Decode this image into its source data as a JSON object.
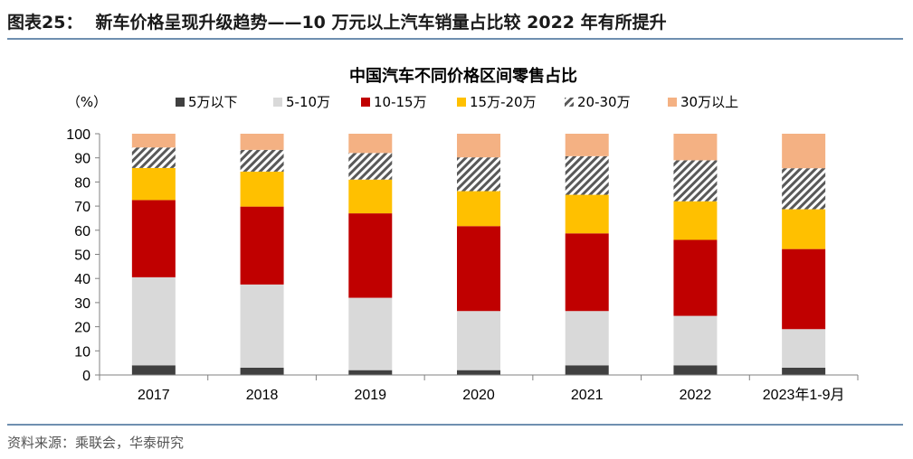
{
  "figure": {
    "label": "图表25：",
    "title": "新车价格呈现升级趋势——10 万元以上汽车销量占比较 2022 年有所提升",
    "source": "资料来源：乘联会，华泰研究"
  },
  "chart_data": {
    "type": "bar",
    "stacked": true,
    "title": "中国汽车不同价格区间零售占比",
    "ylabel": "（%）",
    "xlabel": "",
    "ylim": [
      0,
      100
    ],
    "yticks": [
      0,
      10,
      20,
      30,
      40,
      50,
      60,
      70,
      80,
      90,
      100
    ],
    "categories": [
      "2017",
      "2018",
      "2019",
      "2020",
      "2021",
      "2022",
      "2023年1-9月"
    ],
    "series": [
      {
        "name": "5万以下",
        "color": "#404040",
        "pattern": false,
        "values": [
          4,
          3,
          2,
          2,
          4,
          4,
          3
        ]
      },
      {
        "name": "5-10万",
        "color": "#d9d9d9",
        "pattern": false,
        "values": [
          36.5,
          34.5,
          30,
          24.5,
          22.5,
          20.5,
          16
        ]
      },
      {
        "name": "10-15万",
        "color": "#c00000",
        "pattern": false,
        "values": [
          32,
          32.3,
          35,
          35.2,
          32.2,
          31.5,
          33.2
        ]
      },
      {
        "name": "15万-20万",
        "color": "#ffc000",
        "pattern": false,
        "values": [
          13.3,
          14.5,
          14,
          14.5,
          16,
          16,
          16.5
        ]
      },
      {
        "name": "20-30万",
        "color": "#595959",
        "pattern": true,
        "values": [
          8.5,
          9,
          11,
          14,
          16,
          17,
          17
        ]
      },
      {
        "name": "30万以上",
        "color": "#f4b183",
        "pattern": false,
        "values": [
          5.7,
          6.7,
          8,
          9.8,
          9.3,
          11,
          14.3
        ]
      }
    ],
    "legend_position": "top",
    "grid": false
  }
}
